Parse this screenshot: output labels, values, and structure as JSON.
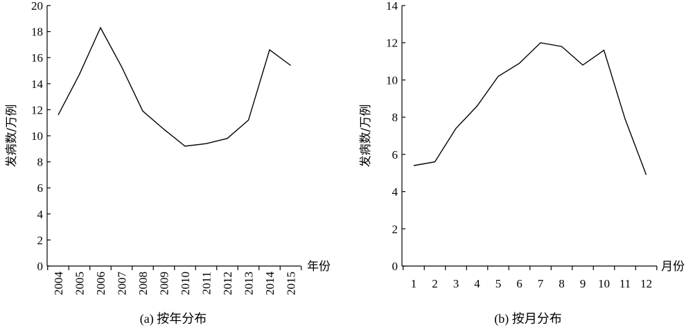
{
  "chart_data": [
    {
      "type": "line",
      "caption": "(a) 按年分布",
      "xlabel": "年份",
      "ylabel": "发病数/万例",
      "categories": [
        "2004",
        "2005",
        "2006",
        "2007",
        "2008",
        "2009",
        "2010",
        "2011",
        "2012",
        "2013",
        "2014",
        "2015"
      ],
      "values": [
        11.6,
        14.7,
        18.3,
        15.3,
        11.9,
        10.5,
        9.2,
        9.4,
        9.8,
        11.2,
        16.6,
        15.4
      ],
      "ylim": [
        0,
        20
      ],
      "yticks": [
        0,
        2,
        4,
        6,
        8,
        10,
        12,
        14,
        16,
        18,
        20
      ],
      "grid": false,
      "x_tick_rotation": -90
    },
    {
      "type": "line",
      "caption": "(b) 按月分布",
      "xlabel": "月份",
      "ylabel": "发病数/万例",
      "categories": [
        "1",
        "2",
        "3",
        "4",
        "5",
        "6",
        "7",
        "8",
        "9",
        "10",
        "11",
        "12"
      ],
      "values": [
        5.4,
        5.6,
        7.4,
        8.6,
        10.2,
        10.9,
        12.0,
        11.8,
        10.8,
        11.6,
        7.9,
        4.9
      ],
      "ylim": [
        0,
        14
      ],
      "yticks": [
        0,
        2,
        4,
        6,
        8,
        10,
        12,
        14
      ],
      "grid": false,
      "x_tick_rotation": 0
    }
  ]
}
